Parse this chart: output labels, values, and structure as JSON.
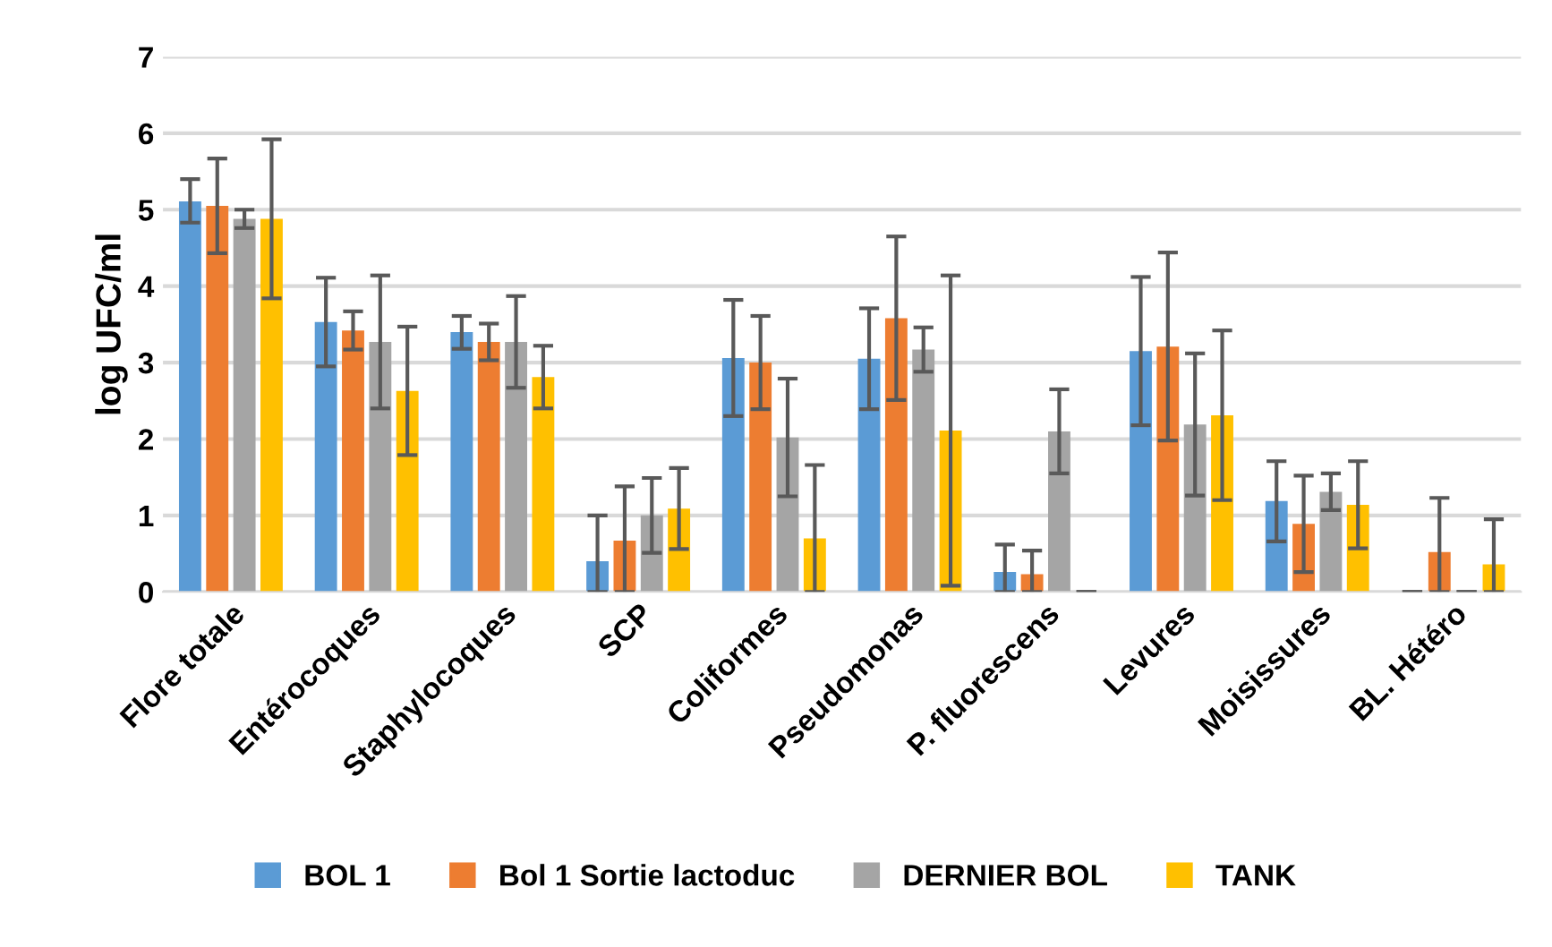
{
  "chart_data": {
    "type": "bar",
    "ylabel": "log UFC/ml",
    "categories": [
      "Flore totale",
      "Entérocoques",
      "Staphylocoques",
      "SCP",
      "Coliformes",
      "Pseudomonas",
      "P. fluorescens",
      "Levures",
      "Moisissures",
      "BL. Hétéro"
    ],
    "series": [
      {
        "name": "BOL 1",
        "color": "#5b9bd5",
        "values": [
          5.11,
          3.53,
          3.4,
          0.4,
          3.06,
          3.05,
          0.26,
          3.15,
          1.19,
          0
        ],
        "errors": [
          [
            4.83,
            5.4
          ],
          [
            2.95,
            4.11
          ],
          [
            3.18,
            3.61
          ],
          [
            0,
            1.0
          ],
          [
            2.3,
            3.82
          ],
          [
            2.39,
            3.71
          ],
          [
            0,
            0.62
          ],
          [
            2.18,
            4.12
          ],
          [
            0.66,
            1.71
          ],
          [
            0,
            0
          ]
        ]
      },
      {
        "name": "Bol 1 Sortie lactoduc",
        "color": "#ed7d31",
        "values": [
          5.05,
          3.42,
          3.27,
          0.67,
          3.0,
          3.58,
          0.23,
          3.21,
          0.89,
          0.52
        ],
        "errors": [
          [
            4.43,
            5.67
          ],
          [
            3.17,
            3.67
          ],
          [
            3.03,
            3.51
          ],
          [
            0,
            1.38
          ],
          [
            2.39,
            3.61
          ],
          [
            2.51,
            4.65
          ],
          [
            0,
            0.54
          ],
          [
            1.98,
            4.44
          ],
          [
            0.26,
            1.52
          ],
          [
            0,
            1.23
          ]
        ]
      },
      {
        "name": "DERNIER BOL",
        "color": "#a5a5a5",
        "values": [
          4.88,
          3.27,
          3.27,
          1.0,
          2.02,
          3.17,
          2.1,
          2.19,
          1.31,
          0
        ],
        "errors": [
          [
            4.76,
            5.0
          ],
          [
            2.4,
            4.14
          ],
          [
            2.67,
            3.87
          ],
          [
            0.51,
            1.49
          ],
          [
            1.25,
            2.79
          ],
          [
            2.88,
            3.46
          ],
          [
            1.55,
            2.65
          ],
          [
            1.26,
            3.12
          ],
          [
            1.07,
            1.55
          ],
          [
            0,
            0
          ]
        ]
      },
      {
        "name": "TANK",
        "color": "#ffc000",
        "values": [
          4.88,
          2.63,
          2.81,
          1.09,
          0.7,
          2.11,
          0,
          2.31,
          1.14,
          0.36
        ],
        "errors": [
          [
            3.84,
            5.92
          ],
          [
            1.79,
            3.47
          ],
          [
            2.4,
            3.22
          ],
          [
            0.56,
            1.62
          ],
          [
            0,
            1.66
          ],
          [
            0.08,
            4.14
          ],
          [
            0,
            0
          ],
          [
            1.2,
            3.42
          ],
          [
            0.57,
            1.71
          ],
          [
            0,
            0.95
          ]
        ]
      }
    ],
    "ylim": [
      0,
      7
    ],
    "yticks": [
      0,
      1,
      2,
      3,
      4,
      5,
      6,
      7
    ],
    "grid": "y",
    "legend": "bottom"
  }
}
